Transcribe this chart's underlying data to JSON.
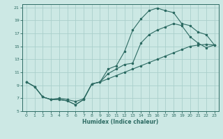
{
  "xlabel": "Humidex (Indice chaleur)",
  "bg_color": "#cce8e4",
  "grid_color": "#aacfcb",
  "line_color": "#2d6b63",
  "xlim": [
    -0.5,
    23.5
  ],
  "ylim": [
    5,
    21.5
  ],
  "xticks": [
    0,
    1,
    2,
    3,
    4,
    5,
    6,
    7,
    8,
    9,
    10,
    11,
    12,
    13,
    14,
    15,
    16,
    17,
    18,
    19,
    20,
    21,
    22,
    23
  ],
  "yticks": [
    5,
    7,
    9,
    11,
    13,
    15,
    17,
    19,
    21
  ],
  "line1_x": [
    0,
    1,
    2,
    3,
    4,
    5,
    6,
    7,
    8,
    9,
    10,
    11,
    12,
    13,
    14,
    15,
    16,
    17,
    18,
    19,
    20,
    21,
    22,
    23
  ],
  "line1_y": [
    9.5,
    8.8,
    7.2,
    6.8,
    6.8,
    6.6,
    6.0,
    6.8,
    9.2,
    9.5,
    11.5,
    12.0,
    14.2,
    17.5,
    19.2,
    20.5,
    20.9,
    20.5,
    20.2,
    18.5,
    18.2,
    17.2,
    16.8,
    15.2
  ],
  "line2_x": [
    0,
    1,
    2,
    3,
    4,
    5,
    6,
    7,
    8,
    9,
    10,
    11,
    12,
    13,
    14,
    15,
    16,
    17,
    18,
    19,
    20,
    21,
    22,
    23
  ],
  "line2_y": [
    9.5,
    8.8,
    7.2,
    6.8,
    6.8,
    6.6,
    6.0,
    6.8,
    9.2,
    9.5,
    10.8,
    11.5,
    12.2,
    12.4,
    15.5,
    16.8,
    17.5,
    18.0,
    18.5,
    18.2,
    16.5,
    15.5,
    14.8,
    15.2
  ],
  "line3_x": [
    0,
    1,
    2,
    3,
    4,
    5,
    6,
    7,
    8,
    9,
    10,
    11,
    12,
    13,
    14,
    15,
    16,
    17,
    18,
    19,
    20,
    21,
    22,
    23
  ],
  "line3_y": [
    9.5,
    8.8,
    7.2,
    6.8,
    7.0,
    6.8,
    6.5,
    6.9,
    9.2,
    9.5,
    10.0,
    10.5,
    11.0,
    11.5,
    12.0,
    12.5,
    13.0,
    13.5,
    14.0,
    14.5,
    15.0,
    15.2,
    15.3,
    15.2
  ]
}
